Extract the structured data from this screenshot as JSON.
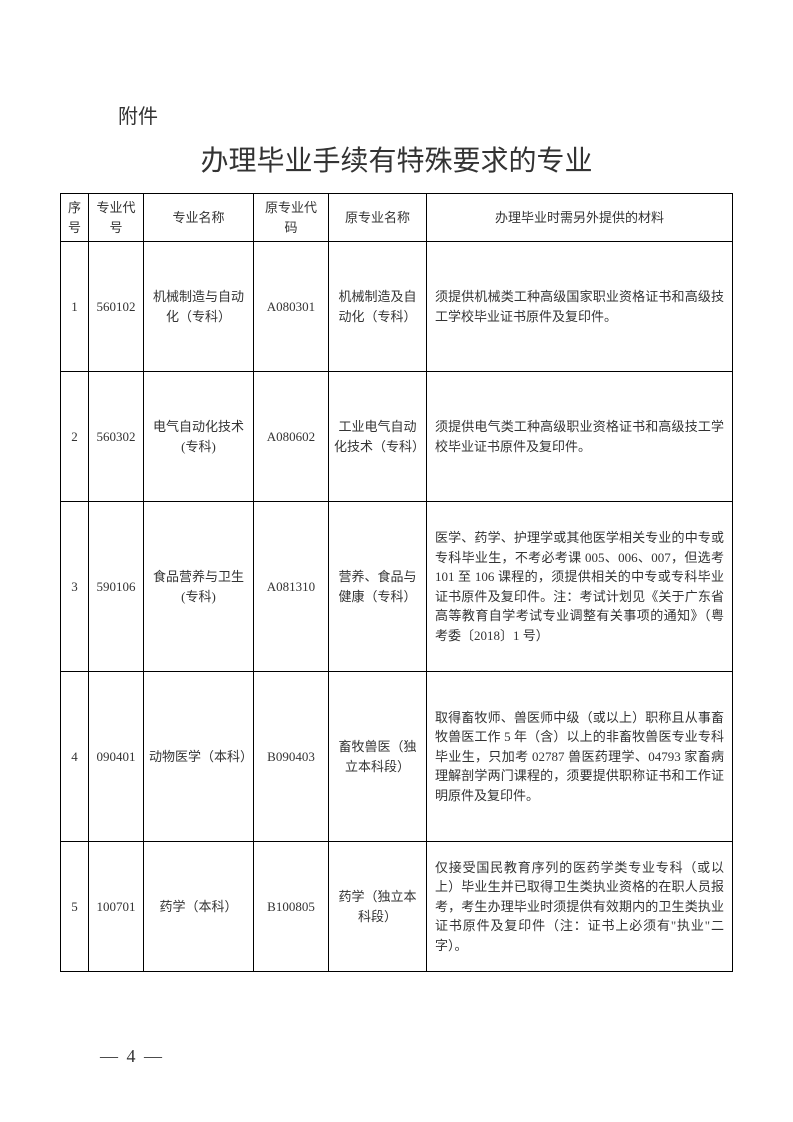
{
  "attachment_label": "附件",
  "title": "办理毕业手续有特殊要求的专业",
  "table": {
    "headers": {
      "seq": "序号",
      "code": "专业代号",
      "name": "专业名称",
      "orig_code": "原专业代码",
      "orig_name": "原专业名称",
      "material": "办理毕业时需另外提供的材料"
    },
    "rows": [
      {
        "seq": "1",
        "code": "560102",
        "name": "机械制造与自动化（专科）",
        "orig_code": "A080301",
        "orig_name": "机械制造及自动化（专科）",
        "material": "须提供机械类工种高级国家职业资格证书和高级技工学校毕业证书原件及复印件。"
      },
      {
        "seq": "2",
        "code": "560302",
        "name": "电气自动化技术(专科)",
        "orig_code": "A080602",
        "orig_name": "工业电气自动化技术（专科）",
        "material": "须提供电气类工种高级职业资格证书和高级技工学校毕业证书原件及复印件。"
      },
      {
        "seq": "3",
        "code": "590106",
        "name": "食品营养与卫生(专科)",
        "orig_code": "A081310",
        "orig_name": "营养、食品与健康（专科）",
        "material": "医学、药学、护理学或其他医学相关专业的中专或专科毕业生，不考必考课 005、006、007，但选考 101 至 106 课程的，须提供相关的中专或专科毕业证书原件及复印件。注：考试计划见《关于广东省高等教育自学考试专业调整有关事项的通知》（粤考委〔2018〕1 号）"
      },
      {
        "seq": "4",
        "code": "090401",
        "name": "动物医学（本科）",
        "orig_code": "B090403",
        "orig_name": "畜牧兽医（独立本科段）",
        "material": "取得畜牧师、兽医师中级（或以上）职称且从事畜牧兽医工作 5 年（含）以上的非畜牧兽医专业专科毕业生，只加考 02787 兽医药理学、04793 家畜病理解剖学两门课程的，须要提供职称证书和工作证明原件及复印件。"
      },
      {
        "seq": "5",
        "code": "100701",
        "name": "药学（本科）",
        "orig_code": "B100805",
        "orig_name": "药学（独立本科段）",
        "material": "仅接受国民教育序列的医药学类专业专科（或以上）毕业生并已取得卫生类执业资格的在职人员报考，考生办理毕业时须提供有效期内的卫生类执业证书原件及复印件（注：证书上必须有\"执业\"二字）。"
      }
    ]
  },
  "page_number": "— 4 —"
}
